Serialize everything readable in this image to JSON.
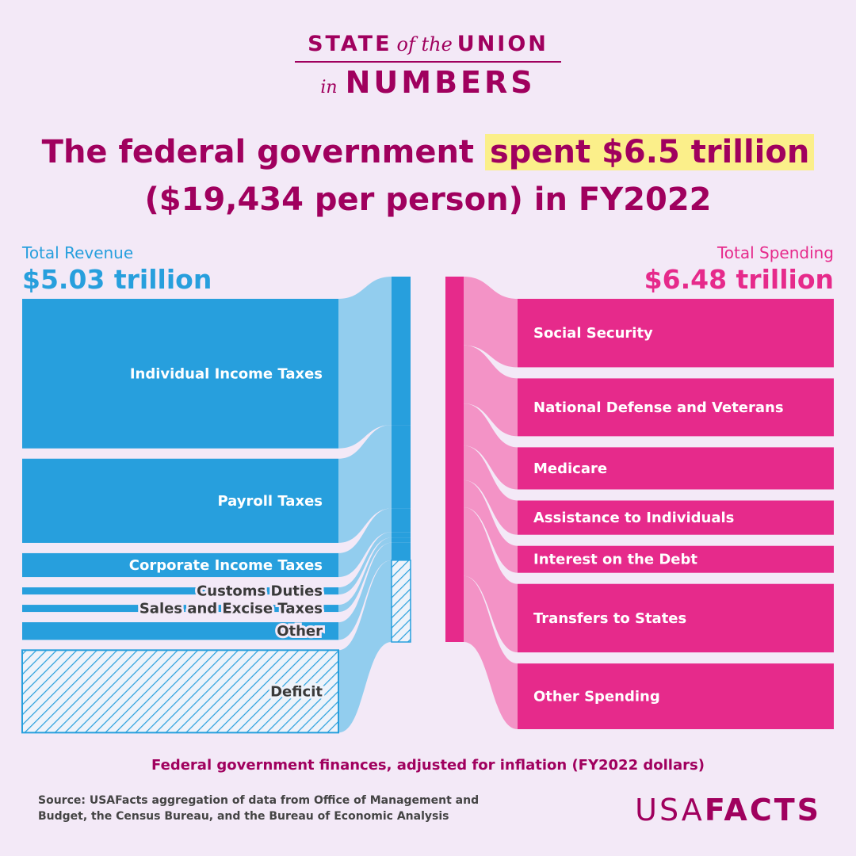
{
  "brand": {
    "line1_a": "STATE",
    "line1_of": "of the",
    "line1_b": "UNION",
    "line2_in": "in",
    "line2_b": "NUMBERS"
  },
  "headline": {
    "pre": "The federal government",
    "highlight": "spent $6.5 trillion",
    "line2": "($19,434 per person) in FY2022"
  },
  "colors": {
    "revenue": "#279fdd",
    "revenue_flow": "#92cdee",
    "spending": "#e62a8b",
    "spending_flow": "#f393c6",
    "brand": "#a0005e",
    "highlight": "#fbef8a"
  },
  "chart_data": {
    "type": "sankey",
    "units": "trillion USD (FY2022 dollars)",
    "revenue": {
      "label": "Total Revenue",
      "total_text": "$5.03 trillion",
      "total": 5.03,
      "items": [
        {
          "name": "Individual Income Taxes",
          "value": 2.63
        },
        {
          "name": "Payroll Taxes",
          "value": 1.48
        },
        {
          "name": "Corporate Income Taxes",
          "value": 0.42
        },
        {
          "name": "Customs Duties",
          "value": 0.1
        },
        {
          "name": "Sales and Excise Taxes",
          "value": 0.09
        },
        {
          "name": "Other",
          "value": 0.31
        }
      ],
      "deficit": {
        "name": "Deficit",
        "value": 1.45
      }
    },
    "spending": {
      "label": "Total Spending",
      "total_text": "$6.48 trillion",
      "total": 6.48,
      "items": [
        {
          "name": "Social Security",
          "value": 1.22
        },
        {
          "name": "National Defense and Veterans",
          "value": 1.03
        },
        {
          "name": "Medicare",
          "value": 0.75
        },
        {
          "name": "Assistance to Individuals",
          "value": 0.61
        },
        {
          "name": "Interest on the Debt",
          "value": 0.48
        },
        {
          "name": "Transfers to States",
          "value": 1.22
        },
        {
          "name": "Other Spending",
          "value": 1.17
        }
      ]
    }
  },
  "footnote": "Federal government finances, adjusted for inflation (FY2022 dollars)",
  "source": "Source: USAFacts aggregation of data from Office of Management and Budget, the Census Bureau, and the Bureau of Economic Analysis",
  "logo": {
    "light": "USA",
    "bold": "FACTS"
  }
}
